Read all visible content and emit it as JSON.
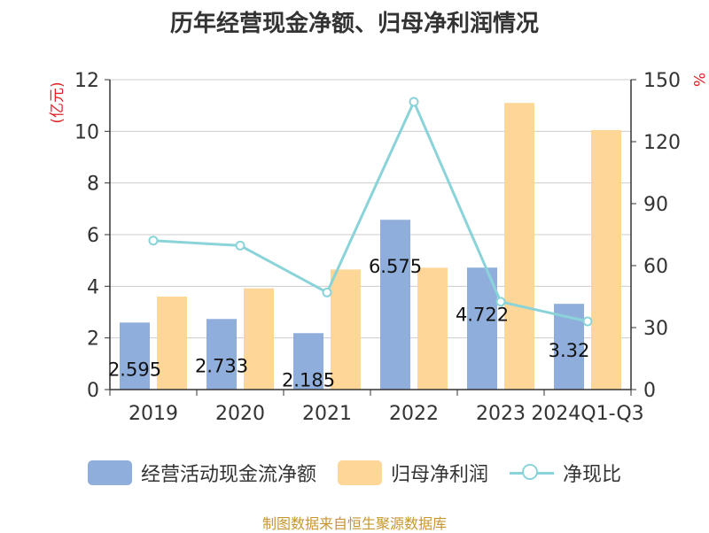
{
  "title": "历年经营现金净额、归母净利润情况",
  "y_left_unit": "(亿元)",
  "y_right_unit": "%",
  "source": "制图数据来自恒生聚源数据库",
  "colors": {
    "cash": "#8FAEDC",
    "profit": "#FDD698",
    "ratio": "#8AD3D9",
    "unit": "#E0222A",
    "source": "#C69630",
    "grid": "#CCCCCC",
    "axis": "#333333"
  },
  "legend": [
    {
      "label": "经营活动现金流净额",
      "kind": "box",
      "color_key": "cash"
    },
    {
      "label": "归母净利润",
      "kind": "box",
      "color_key": "profit"
    },
    {
      "label": "净现比",
      "kind": "line",
      "color_key": "ratio"
    }
  ],
  "chart_data": {
    "type": "bar",
    "categories": [
      "2019",
      "2020",
      "2021",
      "2022",
      "2023",
      "2024Q1-Q3"
    ],
    "series": [
      {
        "name": "经营活动现金流净额",
        "type": "bar",
        "axis": "left",
        "values": [
          2.595,
          2.733,
          2.185,
          6.575,
          4.722,
          3.32
        ],
        "labels": [
          "2.595",
          "2.733",
          "2.185",
          "6.575",
          "4.722",
          "3.32"
        ]
      },
      {
        "name": "归母净利润",
        "type": "bar",
        "axis": "left",
        "values": [
          3.6,
          3.92,
          4.65,
          4.72,
          11.1,
          10.05
        ]
      },
      {
        "name": "净现比",
        "type": "line",
        "axis": "right",
        "values": [
          72.1,
          69.7,
          47.0,
          139.3,
          42.5,
          33.0
        ]
      }
    ],
    "y_left": {
      "label": "(亿元)",
      "min": 0,
      "max": 12,
      "ticks": [
        0,
        2,
        4,
        6,
        8,
        10,
        12
      ]
    },
    "y_right": {
      "label": "%",
      "min": 0,
      "max": 150,
      "ticks": [
        0,
        30,
        60,
        90,
        120,
        150
      ]
    },
    "grid": true,
    "legend_position": "bottom"
  }
}
